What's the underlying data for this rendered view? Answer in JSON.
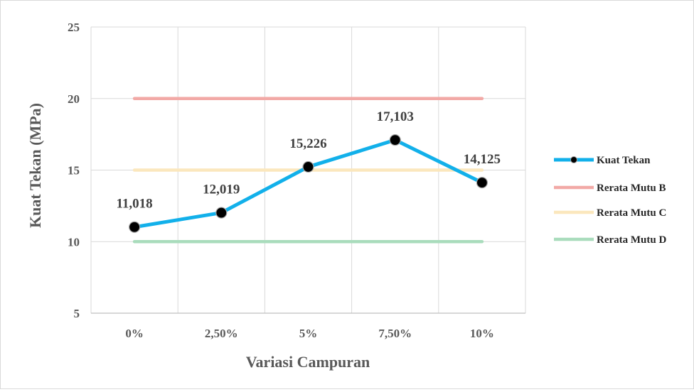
{
  "chart_data": {
    "type": "line",
    "categories": [
      "0%",
      "2,50%",
      "5%",
      "7,50%",
      "10%"
    ],
    "series": [
      {
        "name": "Kuat Tekan",
        "values": [
          11.018,
          12.019,
          15.226,
          17.103,
          14.125
        ],
        "labels": [
          "11,018",
          "12,019",
          "15,226",
          "17,103",
          "14,125"
        ],
        "color": "#12b0ea",
        "marker": "circle",
        "marker_color": "#000000"
      },
      {
        "name": "Rerata Mutu B",
        "values": [
          20,
          20,
          20,
          20,
          20
        ],
        "color": "#f2a9a6"
      },
      {
        "name": "Rerata Mutu C",
        "values": [
          15,
          15,
          15,
          15,
          15
        ],
        "color": "#fbe7bd"
      },
      {
        "name": "Rerata Mutu D",
        "values": [
          10,
          10,
          10,
          10,
          10
        ],
        "color": "#a9dcbc"
      }
    ],
    "title": "",
    "xlabel": "Variasi Campuran",
    "ylabel": "Kuat Tekan (MPa)",
    "ylim": [
      5,
      25
    ],
    "yticks": [
      "5",
      "10",
      "15",
      "20",
      "25"
    ],
    "grid": true,
    "legend_position": "right"
  }
}
